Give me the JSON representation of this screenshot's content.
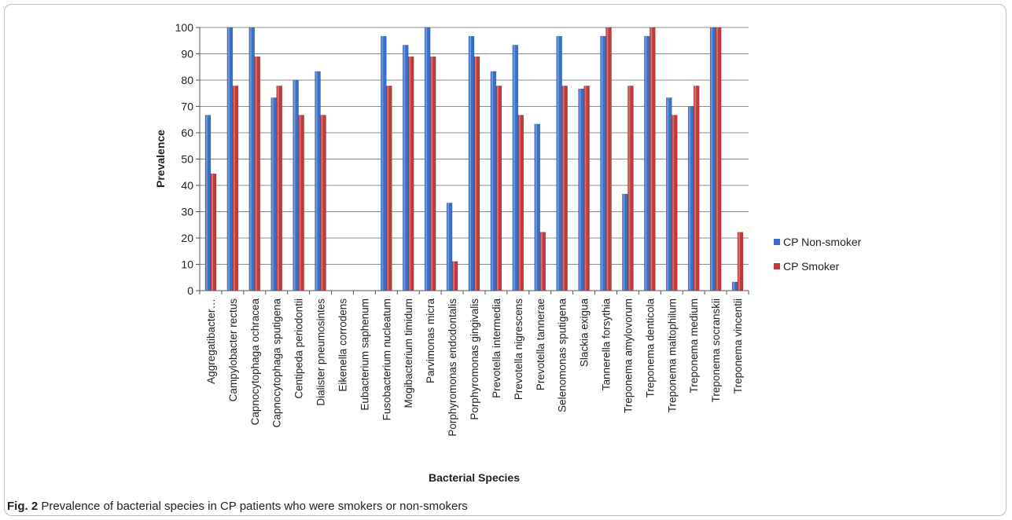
{
  "caption": {
    "label": "Fig. 2",
    "text": "Prevalence of bacterial species in CP patients who were smokers or non-smokers"
  },
  "colors": {
    "series": [
      "#3a6fc8",
      "#c23a38"
    ],
    "grid": "#8c8c8c"
  },
  "chart_data": {
    "type": "bar",
    "title": "",
    "xlabel": "Bacterial Species",
    "ylabel": "Prevalence",
    "ylim": [
      0,
      100
    ],
    "yticks": [
      0,
      10,
      20,
      30,
      40,
      50,
      60,
      70,
      80,
      90,
      100
    ],
    "grid": true,
    "legend_position": "right",
    "categories": [
      "Aggregatibacter…",
      "Campylobacter rectus",
      "Capnocytophaga ochracea",
      "Capnocytophaga sputigena",
      "Centipeda periodontii",
      "Dialister pneumosintes",
      "Eikenella corrodens",
      "Eubacterium saphenum",
      "Fusobacterium nucleatum",
      "Mogibacterium timidum",
      "Parvimonas micra",
      "Porphyromonas endodontalis",
      "Porphyromonas gingivalis",
      "Prevotella intermedia",
      "Prevotella nigrescens",
      "Prevotella tannerae",
      "Selenomonas sputigena",
      "Slackia exigua",
      "Tannerella forsythia",
      "Treponema amylovorum",
      "Treponema denticola",
      "Treponema maltophilum",
      "Treponema medium",
      "Treponema socranskii",
      "Treponema vincentii"
    ],
    "series": [
      {
        "name": "CP Non-smoker",
        "values": [
          66.7,
          100,
          100,
          73.3,
          80,
          83.3,
          0,
          0,
          96.7,
          93.3,
          100,
          33.3,
          96.7,
          83.3,
          93.3,
          63.3,
          96.7,
          76.7,
          96.7,
          36.7,
          96.7,
          73.3,
          70,
          100,
          3.3
        ]
      },
      {
        "name": "CP Smoker",
        "values": [
          44.4,
          77.8,
          88.9,
          77.8,
          66.7,
          66.7,
          0,
          0,
          77.8,
          88.9,
          88.9,
          11.1,
          88.9,
          77.8,
          66.7,
          22.2,
          77.8,
          77.8,
          100,
          77.8,
          100,
          66.7,
          77.8,
          100,
          22.2
        ]
      }
    ]
  }
}
